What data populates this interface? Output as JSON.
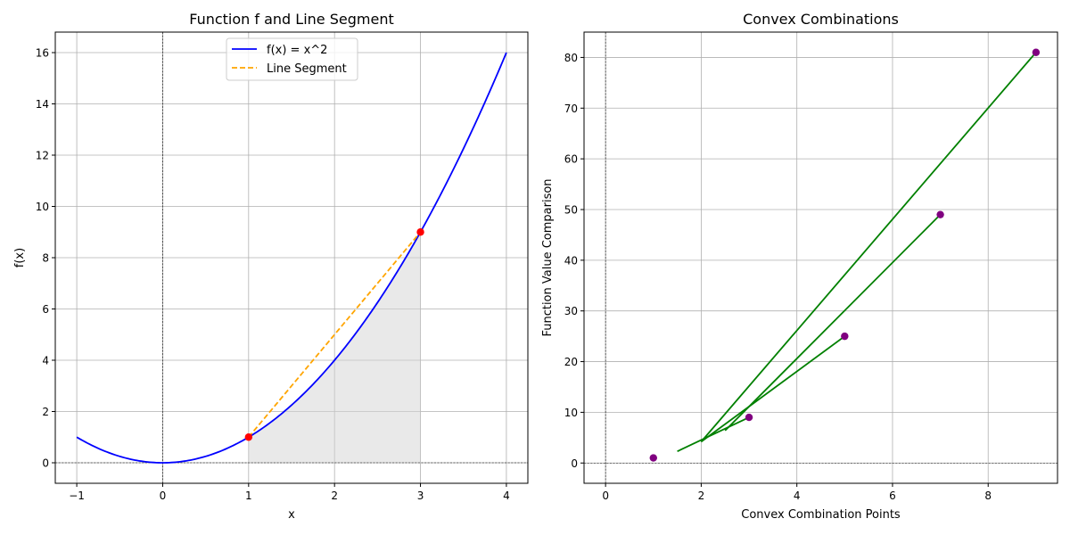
{
  "chart_data": [
    {
      "type": "line",
      "title": "Function f and Line Segment",
      "xlabel": "x",
      "ylabel": "f(x)",
      "xlim": [
        -1.25,
        4.25
      ],
      "ylim": [
        -0.8,
        16.8
      ],
      "xticks": [
        -1,
        0,
        1,
        2,
        3,
        4
      ],
      "yticks": [
        0,
        2,
        4,
        6,
        8,
        10,
        12,
        14,
        16
      ],
      "xtick_labels": [
        "−1",
        "0",
        "1",
        "2",
        "3",
        "4"
      ],
      "ytick_labels": [
        "0",
        "2",
        "4",
        "6",
        "8",
        "10",
        "12",
        "14",
        "16"
      ],
      "grid": true,
      "legend_position": "top-center",
      "reference_lines": {
        "x": 0,
        "y": 0
      },
      "series": [
        {
          "name": "f(x) = x^2",
          "kind": "curve",
          "function": "x^2",
          "x_range": [
            -1,
            4
          ],
          "color": "#0000ff",
          "style": "solid"
        },
        {
          "name": "Line Segment",
          "kind": "segment",
          "x": [
            1,
            3
          ],
          "y": [
            1,
            9
          ],
          "color": "#ffa500",
          "style": "dashed"
        }
      ],
      "points": {
        "x": [
          1,
          3
        ],
        "y": [
          1,
          9
        ],
        "color": "#ff0000"
      },
      "shaded_region": {
        "x_range": [
          1,
          3
        ],
        "under": "x^2",
        "color": "#d3d3d3",
        "alpha": 0.5
      }
    },
    {
      "type": "scatter",
      "title": "Convex Combinations",
      "xlabel": "Convex Combination Points",
      "ylabel": "Function Value Comparison",
      "xlim": [
        -0.45,
        9.45
      ],
      "ylim": [
        -4.0,
        85.0
      ],
      "xticks": [
        0,
        2,
        4,
        6,
        8
      ],
      "yticks": [
        0,
        10,
        20,
        30,
        40,
        50,
        60,
        70,
        80
      ],
      "xtick_labels": [
        "0",
        "2",
        "4",
        "6",
        "8"
      ],
      "ytick_labels": [
        "0",
        "10",
        "20",
        "30",
        "40",
        "50",
        "60",
        "70",
        "80"
      ],
      "grid": true,
      "reference_lines": {
        "x": 0,
        "y": 0
      },
      "points": {
        "x": [
          1,
          3,
          5,
          7,
          9
        ],
        "y": [
          1,
          9,
          25,
          49,
          81
        ],
        "color": "#800080"
      },
      "segments": [
        {
          "x": [
            1.5,
            3.0
          ],
          "y": [
            2.3,
            9.0
          ]
        },
        {
          "x": [
            2.0,
            5.0
          ],
          "y": [
            4.2,
            25.0
          ]
        },
        {
          "x": [
            2.5,
            7.0
          ],
          "y": [
            6.4,
            49.0
          ]
        },
        {
          "x": [
            2.0,
            9.0
          ],
          "y": [
            4.2,
            81.0
          ]
        }
      ],
      "segment_color": "#008000"
    }
  ]
}
